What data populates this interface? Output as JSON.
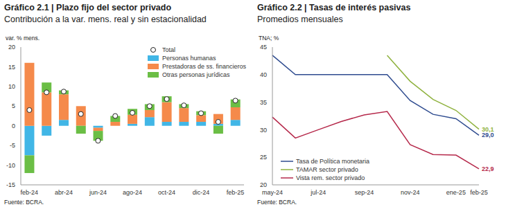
{
  "chart_data": [
    {
      "type": "bar",
      "title": "Gráfico 2.1 | Plazo fijo del sector privado",
      "subtitle": "Contribución a la var. mens. real y sin estacionalidad",
      "y_label": "var. % mens.",
      "source": "Fuente: BCRA.",
      "categories": [
        "feb-24",
        null,
        "abr-24",
        null,
        "jun-24",
        null,
        "ago-24",
        null,
        "oct-24",
        null,
        "dic-24",
        null,
        "feb-25"
      ],
      "stacked": true,
      "legend": "upper right",
      "ylim": [
        -15,
        20
      ],
      "yticks": [
        -15,
        -10,
        -5,
        0,
        5,
        10,
        15,
        20
      ],
      "series": [
        {
          "name": "Total",
          "type": "scatter",
          "marker": "circle",
          "color": "#ffffff",
          "values": [
            4,
            8.5,
            8.7,
            3,
            -3.8,
            2.5,
            3.3,
            5,
            6.8,
            5.2,
            3.2,
            1,
            6.4
          ]
        },
        {
          "name": "Personas humanas",
          "type": "bar",
          "color": "#41b6e6",
          "values": [
            -7.5,
            -2.5,
            1.5,
            0,
            -0.5,
            0,
            0.5,
            2.2,
            1,
            1,
            1,
            0.5,
            1.5
          ]
        },
        {
          "name": "Prestadoras de ss. financieros",
          "type": "bar",
          "color": "#f58a4b",
          "values": [
            16,
            8.5,
            6.5,
            5,
            -0.8,
            1,
            2.3,
            1.8,
            5,
            3.5,
            1.7,
            2.5,
            3.2
          ]
        },
        {
          "name": "Otras personas jurídicas",
          "type": "bar",
          "color": "#6bbe45",
          "values": [
            -4.5,
            2.5,
            1,
            -2,
            -2.5,
            1.5,
            1.5,
            1.5,
            1.5,
            1,
            1,
            -2,
            2
          ]
        }
      ]
    },
    {
      "type": "line",
      "title": "Gráfico 2.2 | Tasas de interés pasivas",
      "subtitle": "Promedios mensuales",
      "y_label": "TNA; %",
      "source": "Fuente: BCRA.",
      "categories": [
        "may-24",
        null,
        "jul-24",
        null,
        "sep-24",
        null,
        "nov-24",
        null,
        "ene-25",
        "feb-25"
      ],
      "legend": "lower left",
      "ylim": [
        20,
        45
      ],
      "yticks": [
        20,
        25,
        30,
        35,
        40,
        45
      ],
      "series": [
        {
          "name": "Tasa de Política monetaria",
          "type": "line",
          "color": "#2e4b8f",
          "values": [
            43.5,
            40,
            40,
            40,
            40,
            40,
            35.3,
            32.8,
            32,
            29
          ],
          "value_labels": [
            null,
            null,
            null,
            null,
            null,
            null,
            null,
            null,
            null,
            "29,0"
          ]
        },
        {
          "name": "TAMAR sector privado",
          "type": "line",
          "color": "#8fb23e",
          "values": [
            null,
            null,
            null,
            null,
            null,
            43.5,
            38.8,
            35.5,
            33.5,
            30.1
          ],
          "value_labels": [
            null,
            null,
            null,
            null,
            null,
            null,
            null,
            null,
            null,
            "30,1"
          ]
        },
        {
          "name": "Vista rem. sector privado",
          "type": "line",
          "color": "#b5284a",
          "values": [
            32.3,
            28.5,
            30,
            31.5,
            32.7,
            33.3,
            27.3,
            25.5,
            25.4,
            22.9
          ],
          "value_labels": [
            null,
            null,
            null,
            null,
            null,
            null,
            null,
            null,
            null,
            "22,9"
          ]
        }
      ]
    }
  ]
}
